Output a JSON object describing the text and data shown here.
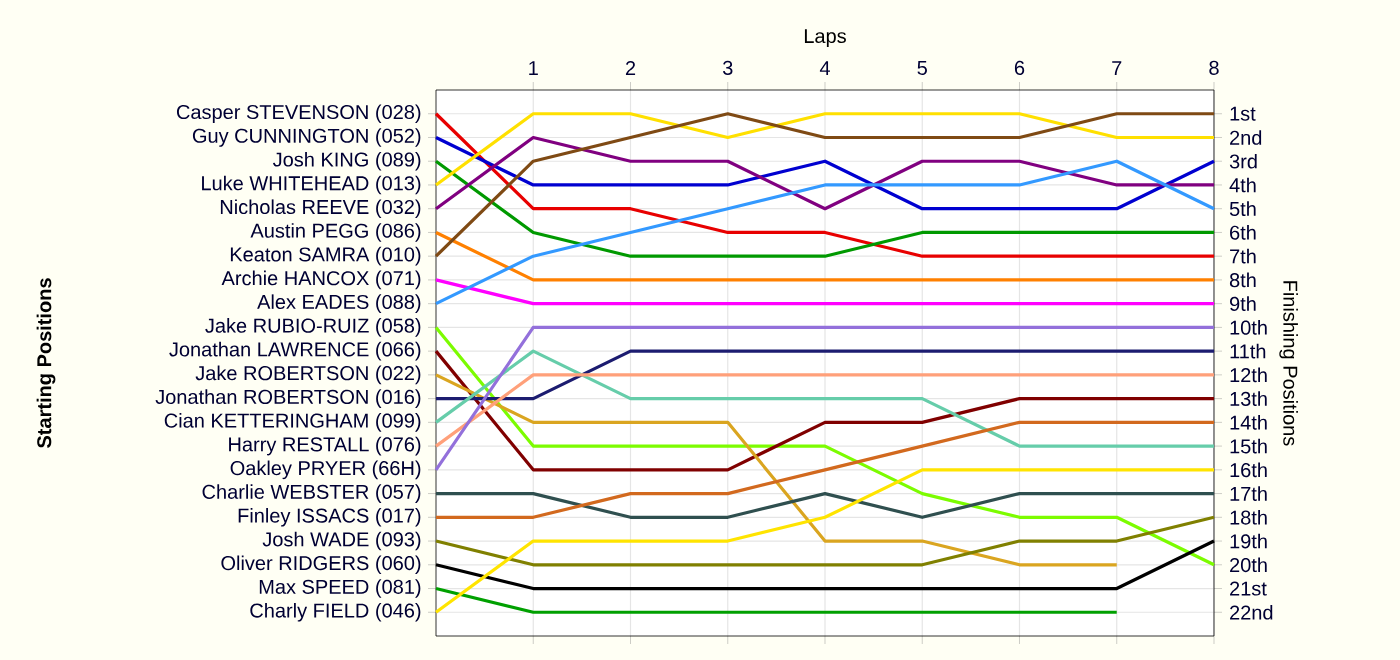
{
  "chart_data": {
    "type": "line",
    "xlabel": "Laps",
    "ylabel": "Finishing Positions",
    "grid": true,
    "annotations": [
      "Starting Positions"
    ],
    "x": [
      0,
      1,
      2,
      3,
      4,
      5,
      6,
      7,
      8
    ],
    "xlim": [
      0,
      8
    ],
    "xticks": [
      1,
      2,
      3,
      4,
      5,
      6,
      7,
      8
    ],
    "ylim": [
      23,
      0
    ],
    "yticks": [
      {
        "value": 1,
        "label": "1st"
      },
      {
        "value": 2,
        "label": "2nd"
      },
      {
        "value": 3,
        "label": "3rd"
      },
      {
        "value": 4,
        "label": "4th"
      },
      {
        "value": 5,
        "label": "5th"
      },
      {
        "value": 6,
        "label": "6th"
      },
      {
        "value": 7,
        "label": "7th"
      },
      {
        "value": 8,
        "label": "8th"
      },
      {
        "value": 9,
        "label": "9th"
      },
      {
        "value": 10,
        "label": "10th"
      },
      {
        "value": 11,
        "label": "11th"
      },
      {
        "value": 12,
        "label": "12th"
      },
      {
        "value": 13,
        "label": "13th"
      },
      {
        "value": 14,
        "label": "14th"
      },
      {
        "value": 15,
        "label": "15th"
      },
      {
        "value": 16,
        "label": "16th"
      },
      {
        "value": 17,
        "label": "17th"
      },
      {
        "value": 18,
        "label": "18th"
      },
      {
        "value": 19,
        "label": "19th"
      },
      {
        "value": 20,
        "label": "20th"
      },
      {
        "value": 21,
        "label": "21st"
      },
      {
        "value": 22,
        "label": "22nd"
      }
    ],
    "series": [
      {
        "name": "Casper STEVENSON (028)",
        "color": "#e80000",
        "values": [
          1,
          5,
          5,
          6,
          6,
          7,
          7,
          7,
          7
        ]
      },
      {
        "name": "Guy CUNNINGTON (052)",
        "color": "#0000d0",
        "values": [
          2,
          4,
          4,
          4,
          3,
          5,
          5,
          5,
          3
        ]
      },
      {
        "name": "Josh KING (089)",
        "color": "#009900",
        "values": [
          3,
          6,
          7,
          7,
          7,
          6,
          6,
          6,
          6
        ]
      },
      {
        "name": "Luke WHITEHEAD (013)",
        "color": "#ffe000",
        "values": [
          4,
          1,
          1,
          2,
          1,
          1,
          1,
          2,
          2
        ]
      },
      {
        "name": "Nicholas REEVE (032)",
        "color": "#800080",
        "values": [
          5,
          2,
          3,
          3,
          5,
          3,
          3,
          4,
          4
        ]
      },
      {
        "name": "Austin PEGG (086)",
        "color": "#ff8000",
        "values": [
          6,
          8,
          8,
          8,
          8,
          8,
          8,
          8,
          8
        ]
      },
      {
        "name": "Keaton SAMRA (010)",
        "color": "#7f4a14",
        "values": [
          7,
          3,
          2,
          1,
          2,
          2,
          2,
          1,
          1
        ]
      },
      {
        "name": "Archie HANCOX (071)",
        "color": "#ff00ff",
        "values": [
          8,
          9,
          9,
          9,
          9,
          9,
          9,
          9,
          9
        ]
      },
      {
        "name": "Alex EADES (088)",
        "color": "#3399ff",
        "values": [
          9,
          7,
          6,
          5,
          4,
          4,
          4,
          3,
          5
        ]
      },
      {
        "name": "Jake RUBIO-RUIZ (058)",
        "color": "#7cfc00",
        "values": [
          10,
          15,
          15,
          15,
          15,
          17,
          18,
          18,
          20
        ]
      },
      {
        "name": "Jonathan LAWRENCE (066)",
        "color": "#800000",
        "values": [
          11,
          16,
          16,
          16,
          14,
          14,
          13,
          13,
          13
        ]
      },
      {
        "name": "Jake ROBERTSON (022)",
        "color": "#daa520",
        "values": [
          12,
          14,
          14,
          14,
          19,
          19,
          20,
          20,
          null
        ]
      },
      {
        "name": "Jonathan ROBERTSON (016)",
        "color": "#1c1c70",
        "values": [
          13,
          13,
          11,
          11,
          11,
          11,
          11,
          11,
          11
        ]
      },
      {
        "name": "Cian KETTERINGHAM (099)",
        "color": "#66cdaa",
        "values": [
          14,
          11,
          13,
          13,
          13,
          13,
          15,
          15,
          15
        ]
      },
      {
        "name": "Harry RESTALL (076)",
        "color": "#ffa07a",
        "values": [
          15,
          12,
          12,
          12,
          12,
          12,
          12,
          12,
          12
        ]
      },
      {
        "name": "Oakley PRYER (66H)",
        "color": "#9370db",
        "values": [
          16,
          10,
          10,
          10,
          10,
          10,
          10,
          10,
          10
        ]
      },
      {
        "name": "Charlie WEBSTER (057)",
        "color": "#2f4f4f",
        "values": [
          17,
          17,
          18,
          18,
          17,
          18,
          17,
          17,
          17
        ]
      },
      {
        "name": "Finley ISSACS (017)",
        "color": "#d2691e",
        "values": [
          18,
          18,
          17,
          17,
          16,
          15,
          14,
          14,
          14
        ]
      },
      {
        "name": "Josh WADE (093)",
        "color": "#808000",
        "values": [
          19,
          20,
          20,
          20,
          20,
          20,
          19,
          19,
          18
        ]
      },
      {
        "name": "Oliver RIDGERS (060)",
        "color": "#000000",
        "values": [
          20,
          21,
          21,
          21,
          21,
          21,
          21,
          21,
          19
        ]
      },
      {
        "name": "Max SPEED (081)",
        "color": "#00a000",
        "values": [
          21,
          22,
          22,
          22,
          22,
          22,
          22,
          22,
          null
        ]
      },
      {
        "name": "Charly FIELD (046)",
        "color": "#ffe400",
        "values": [
          22,
          19,
          19,
          19,
          18,
          16,
          16,
          16,
          16
        ]
      }
    ]
  }
}
